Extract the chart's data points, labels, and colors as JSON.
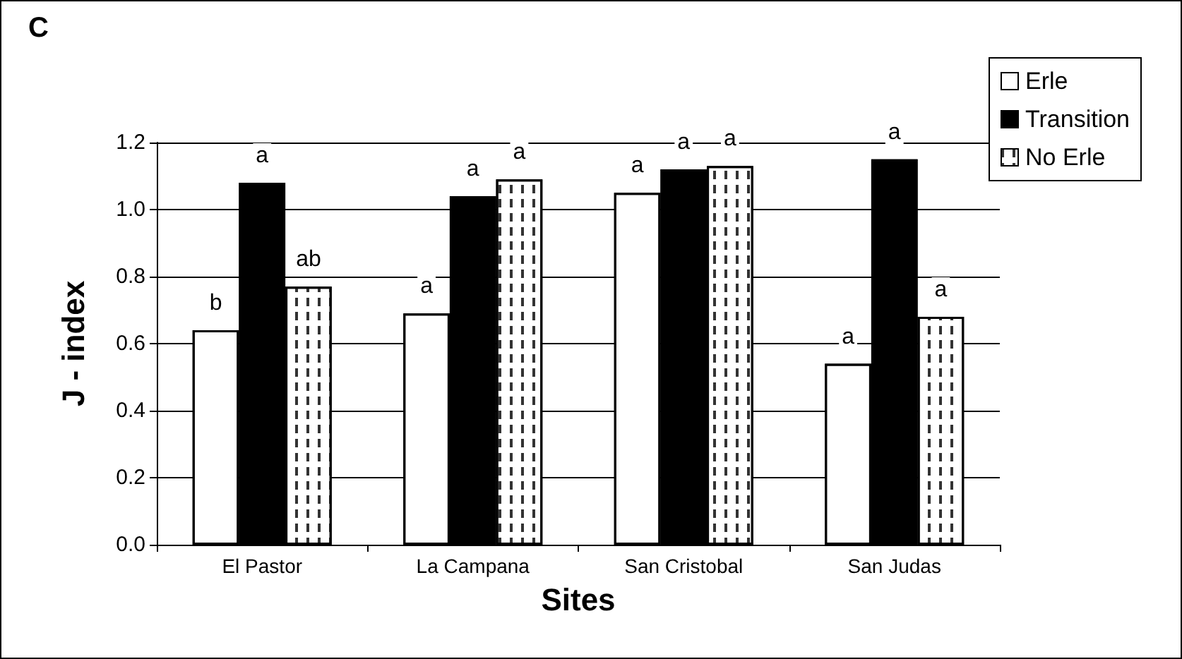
{
  "chart_data": {
    "type": "bar",
    "title": "C",
    "xlabel": "Sites",
    "ylabel": "J - index",
    "categories": [
      "El Pastor",
      "La Campana",
      "San Cristobal",
      "San Judas"
    ],
    "series": [
      {
        "name": "Erle",
        "color": "#ffffff",
        "values": [
          0.64,
          0.69,
          1.05,
          0.54
        ],
        "value_labels": [
          "b",
          "a",
          "a",
          "a"
        ]
      },
      {
        "name": "Transition",
        "color": "#000000",
        "values": [
          1.08,
          1.04,
          1.12,
          1.15
        ],
        "value_labels": [
          "a",
          "a",
          "a",
          "a"
        ]
      },
      {
        "name": "No Erle",
        "color": "#ffffff",
        "values": [
          0.77,
          1.09,
          1.13,
          0.68
        ],
        "value_labels": [
          "ab",
          "a",
          "a",
          "a"
        ]
      }
    ],
    "ylim": [
      0,
      1.2
    ],
    "yticks": [
      {
        "value": 0,
        "label": "0.0"
      },
      {
        "value": 0.2,
        "label": "0.2"
      },
      {
        "value": 0.4,
        "label": "0.4"
      },
      {
        "value": 0.6,
        "label": "0.6"
      },
      {
        "value": 0.8,
        "label": "0.8"
      },
      {
        "value": 1.0,
        "label": "1.0"
      },
      {
        "value": 1.2,
        "label": "1.2"
      }
    ],
    "grid": "y",
    "legend": "top right"
  }
}
